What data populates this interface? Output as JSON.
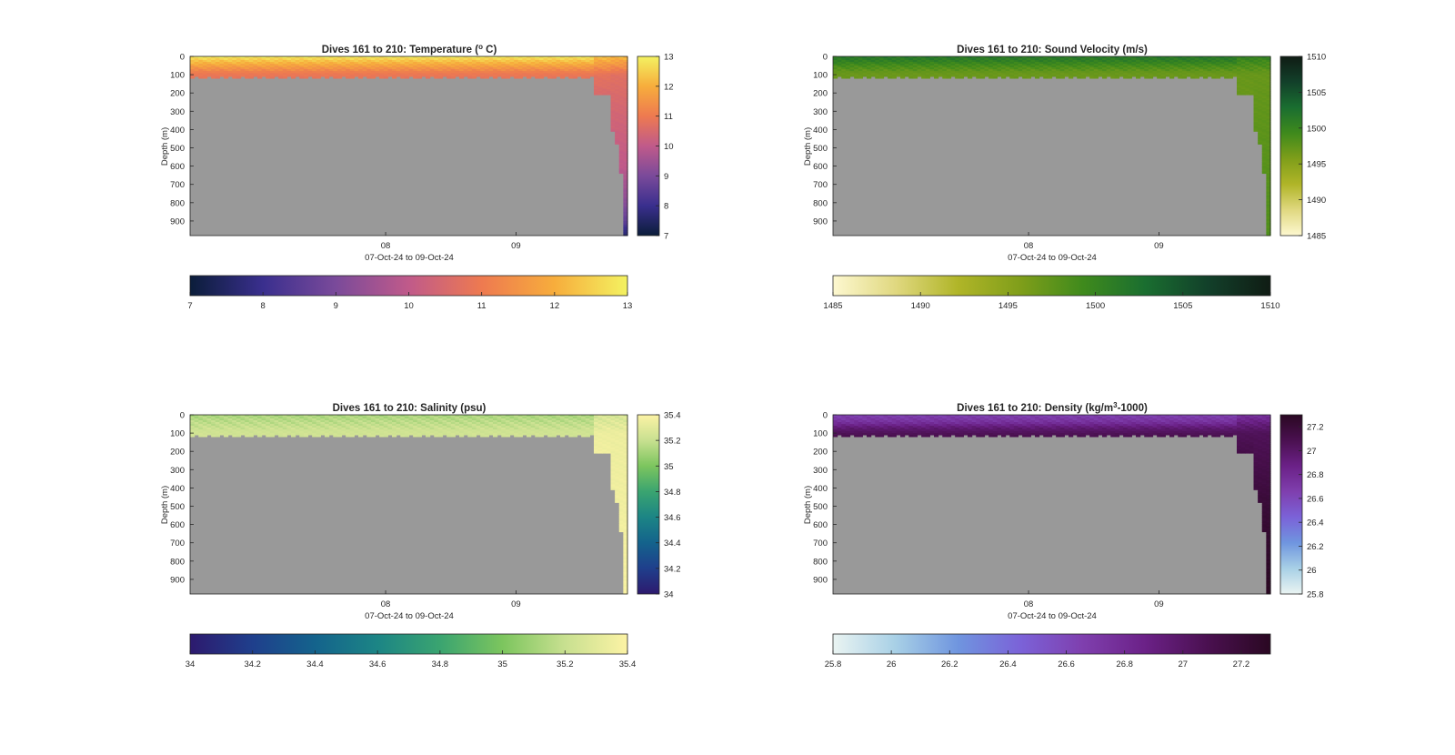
{
  "figure": {
    "panels": [
      {
        "key": "temperature",
        "title": "Dives 161 to 210: Temperature (",
        "title_sup": "o",
        "title_end": " C)",
        "ylabel": "Depth (m)",
        "xlabel": "07-Oct-24 to 09-Oct-24",
        "yticks": [
          "0",
          "100",
          "200",
          "300",
          "400",
          "500",
          "600",
          "700",
          "800",
          "900"
        ],
        "xticks": [
          "08",
          "09"
        ],
        "cbar_ticks": [
          "7",
          "8",
          "9",
          "10",
          "11",
          "12",
          "13"
        ],
        "hbar_ticks": [
          "7",
          "8",
          "9",
          "10",
          "11",
          "12",
          "13"
        ]
      },
      {
        "key": "sound_velocity",
        "title": "Dives 161 to 210: Sound Velocity (m/s)",
        "title_sup": "",
        "title_end": "",
        "ylabel": "Depth (m)",
        "xlabel": "07-Oct-24 to 09-Oct-24",
        "yticks": [
          "0",
          "100",
          "200",
          "300",
          "400",
          "500",
          "600",
          "700",
          "800",
          "900"
        ],
        "xticks": [
          "08",
          "09"
        ],
        "cbar_ticks": [
          "1485",
          "1490",
          "1495",
          "1500",
          "1505",
          "1510"
        ],
        "hbar_ticks": [
          "1485",
          "1490",
          "1495",
          "1500",
          "1505",
          "1510"
        ]
      },
      {
        "key": "salinity",
        "title": "Dives 161 to 210: Salinity (psu)",
        "title_sup": "",
        "title_end": "",
        "ylabel": "Depth (m)",
        "xlabel": "07-Oct-24 to 09-Oct-24",
        "yticks": [
          "0",
          "100",
          "200",
          "300",
          "400",
          "500",
          "600",
          "700",
          "800",
          "900"
        ],
        "xticks": [
          "08",
          "09"
        ],
        "cbar_ticks": [
          "34",
          "34.2",
          "34.4",
          "34.6",
          "34.8",
          "35",
          "35.2",
          "35.4"
        ],
        "hbar_ticks": [
          "34",
          "34.2",
          "34.4",
          "34.6",
          "34.8",
          "35",
          "35.2",
          "35.4"
        ]
      },
      {
        "key": "density",
        "title": "Dives 161 to 210: Density (kg/m",
        "title_sup": "3",
        "title_end": "-1000)",
        "ylabel": "Depth (m)",
        "xlabel": "07-Oct-24 to 09-Oct-24",
        "yticks": [
          "0",
          "100",
          "200",
          "300",
          "400",
          "500",
          "600",
          "700",
          "800",
          "900"
        ],
        "xticks": [
          "08",
          "09"
        ],
        "cbar_ticks": [
          "25.8",
          "26",
          "26.2",
          "26.4",
          "26.6",
          "26.8",
          "27",
          "27.2"
        ],
        "hbar_ticks": [
          "25.8",
          "26",
          "26.2",
          "26.4",
          "26.6",
          "26.8",
          "27",
          "27.2"
        ]
      }
    ]
  },
  "chart_data": [
    {
      "type": "heatmap",
      "title": "Dives 161 to 210: Temperature (o C)",
      "xlabel": "07-Oct-24 to 09-Oct-24",
      "ylabel": "Depth (m)",
      "ylim": [
        0,
        980
      ],
      "x_tick_labels": [
        "08",
        "09"
      ],
      "color_range": [
        7,
        13
      ],
      "colormap": [
        "#0b1d3a",
        "#3a2f8e",
        "#7a4a9a",
        "#c05a8a",
        "#ee7a50",
        "#f7ad3c",
        "#f3f261"
      ],
      "no_data_color": "#999999",
      "columns": [
        {
          "index_range": [
            0,
            95
          ],
          "max_depth_m": 120,
          "profile": [
            [
              0,
              12.9
            ],
            [
              30,
              12.2
            ],
            [
              60,
              11.6
            ],
            [
              90,
              11.0
            ],
            [
              120,
              10.8
            ]
          ]
        },
        {
          "index_range": [
            96,
            99
          ],
          "max_depth_m": 210,
          "profile": [
            [
              0,
              12.3
            ],
            [
              60,
              11.4
            ],
            [
              100,
              10.8
            ],
            [
              210,
              10.5
            ]
          ]
        },
        {
          "index_range": [
            100,
            103
          ],
          "max_depth_m": 980,
          "profile": [
            [
              0,
              12.2
            ],
            [
              60,
              11.3
            ],
            [
              100,
              10.7
            ],
            [
              300,
              10.4
            ],
            [
              600,
              10.0
            ],
            [
              800,
              9.2
            ],
            [
              900,
              8.6
            ],
            [
              980,
              7.5
            ]
          ]
        }
      ]
    },
    {
      "type": "heatmap",
      "title": "Dives 161 to 210: Sound Velocity (m/s)",
      "xlabel": "07-Oct-24 to 09-Oct-24",
      "ylabel": "Depth (m)",
      "ylim": [
        0,
        980
      ],
      "x_tick_labels": [
        "08",
        "09"
      ],
      "color_range": [
        1485,
        1510
      ],
      "colormap": [
        "#fdf8d0",
        "#e0d880",
        "#b0b528",
        "#7f9e1a",
        "#3f8a1c",
        "#1a6e30",
        "#12402a",
        "#101c14"
      ],
      "no_data_color": "#999999",
      "columns": [
        {
          "index_range": [
            0,
            95
          ],
          "max_depth_m": 120,
          "profile": [
            [
              0,
              1501.5
            ],
            [
              20,
              1501.0
            ],
            [
              50,
              1499.0
            ],
            [
              90,
              1497.0
            ],
            [
              120,
              1496.8
            ]
          ]
        },
        {
          "index_range": [
            96,
            99
          ],
          "max_depth_m": 210,
          "profile": [
            [
              0,
              1500.5
            ],
            [
              50,
              1498.5
            ],
            [
              100,
              1497.0
            ],
            [
              210,
              1497.0
            ]
          ]
        },
        {
          "index_range": [
            100,
            103
          ],
          "max_depth_m": 980,
          "profile": [
            [
              0,
              1500.5
            ],
            [
              50,
              1498.5
            ],
            [
              100,
              1497.0
            ],
            [
              500,
              1497.8
            ],
            [
              980,
              1498.3
            ]
          ]
        }
      ]
    },
    {
      "type": "heatmap",
      "title": "Dives 161 to 210: Salinity (psu)",
      "xlabel": "07-Oct-24 to 09-Oct-24",
      "ylabel": "Depth (m)",
      "ylim": [
        0,
        980
      ],
      "x_tick_labels": [
        "08",
        "09"
      ],
      "color_range": [
        34,
        35.4
      ],
      "colormap": [
        "#2d1a6e",
        "#1f3f8c",
        "#14638c",
        "#1c8585",
        "#3aa470",
        "#7cc55e",
        "#c8e090",
        "#fcf3a5"
      ],
      "no_data_color": "#999999",
      "columns": [
        {
          "index_range": [
            0,
            95
          ],
          "max_depth_m": 120,
          "profile": [
            [
              0,
              35.12
            ],
            [
              40,
              35.17
            ],
            [
              80,
              35.22
            ],
            [
              120,
              35.24
            ]
          ]
        },
        {
          "index_range": [
            96,
            99
          ],
          "max_depth_m": 210,
          "profile": [
            [
              0,
              35.25
            ],
            [
              60,
              35.3
            ],
            [
              100,
              35.34
            ],
            [
              210,
              35.36
            ]
          ]
        },
        {
          "index_range": [
            100,
            103
          ],
          "max_depth_m": 980,
          "profile": [
            [
              0,
              35.25
            ],
            [
              60,
              35.3
            ],
            [
              100,
              35.34
            ],
            [
              980,
              35.38
            ]
          ]
        }
      ]
    },
    {
      "type": "heatmap",
      "title": "Dives 161 to 210: Density (kg/m3-1000)",
      "xlabel": "07-Oct-24 to 09-Oct-24",
      "ylabel": "Depth (m)",
      "ylim": [
        0,
        980
      ],
      "x_tick_labels": [
        "08",
        "09"
      ],
      "color_range": [
        25.8,
        27.3
      ],
      "colormap": [
        "#eaf4f2",
        "#a8d0e6",
        "#6f95df",
        "#7b62d8",
        "#7f3fae",
        "#6b2187",
        "#4a1050",
        "#2a0822"
      ],
      "no_data_color": "#999999",
      "columns": [
        {
          "index_range": [
            0,
            95
          ],
          "max_depth_m": 120,
          "profile": [
            [
              0,
              26.65
            ],
            [
              40,
              26.75
            ],
            [
              70,
              26.95
            ],
            [
              100,
              27.05
            ],
            [
              120,
              27.1
            ]
          ]
        },
        {
          "index_range": [
            96,
            99
          ],
          "max_depth_m": 210,
          "profile": [
            [
              0,
              26.75
            ],
            [
              60,
              26.95
            ],
            [
              100,
              27.05
            ],
            [
              210,
              27.12
            ]
          ]
        },
        {
          "index_range": [
            100,
            103
          ],
          "max_depth_m": 980,
          "profile": [
            [
              0,
              26.75
            ],
            [
              60,
              26.95
            ],
            [
              100,
              27.05
            ],
            [
              500,
              27.2
            ],
            [
              980,
              27.3
            ]
          ]
        }
      ]
    }
  ]
}
